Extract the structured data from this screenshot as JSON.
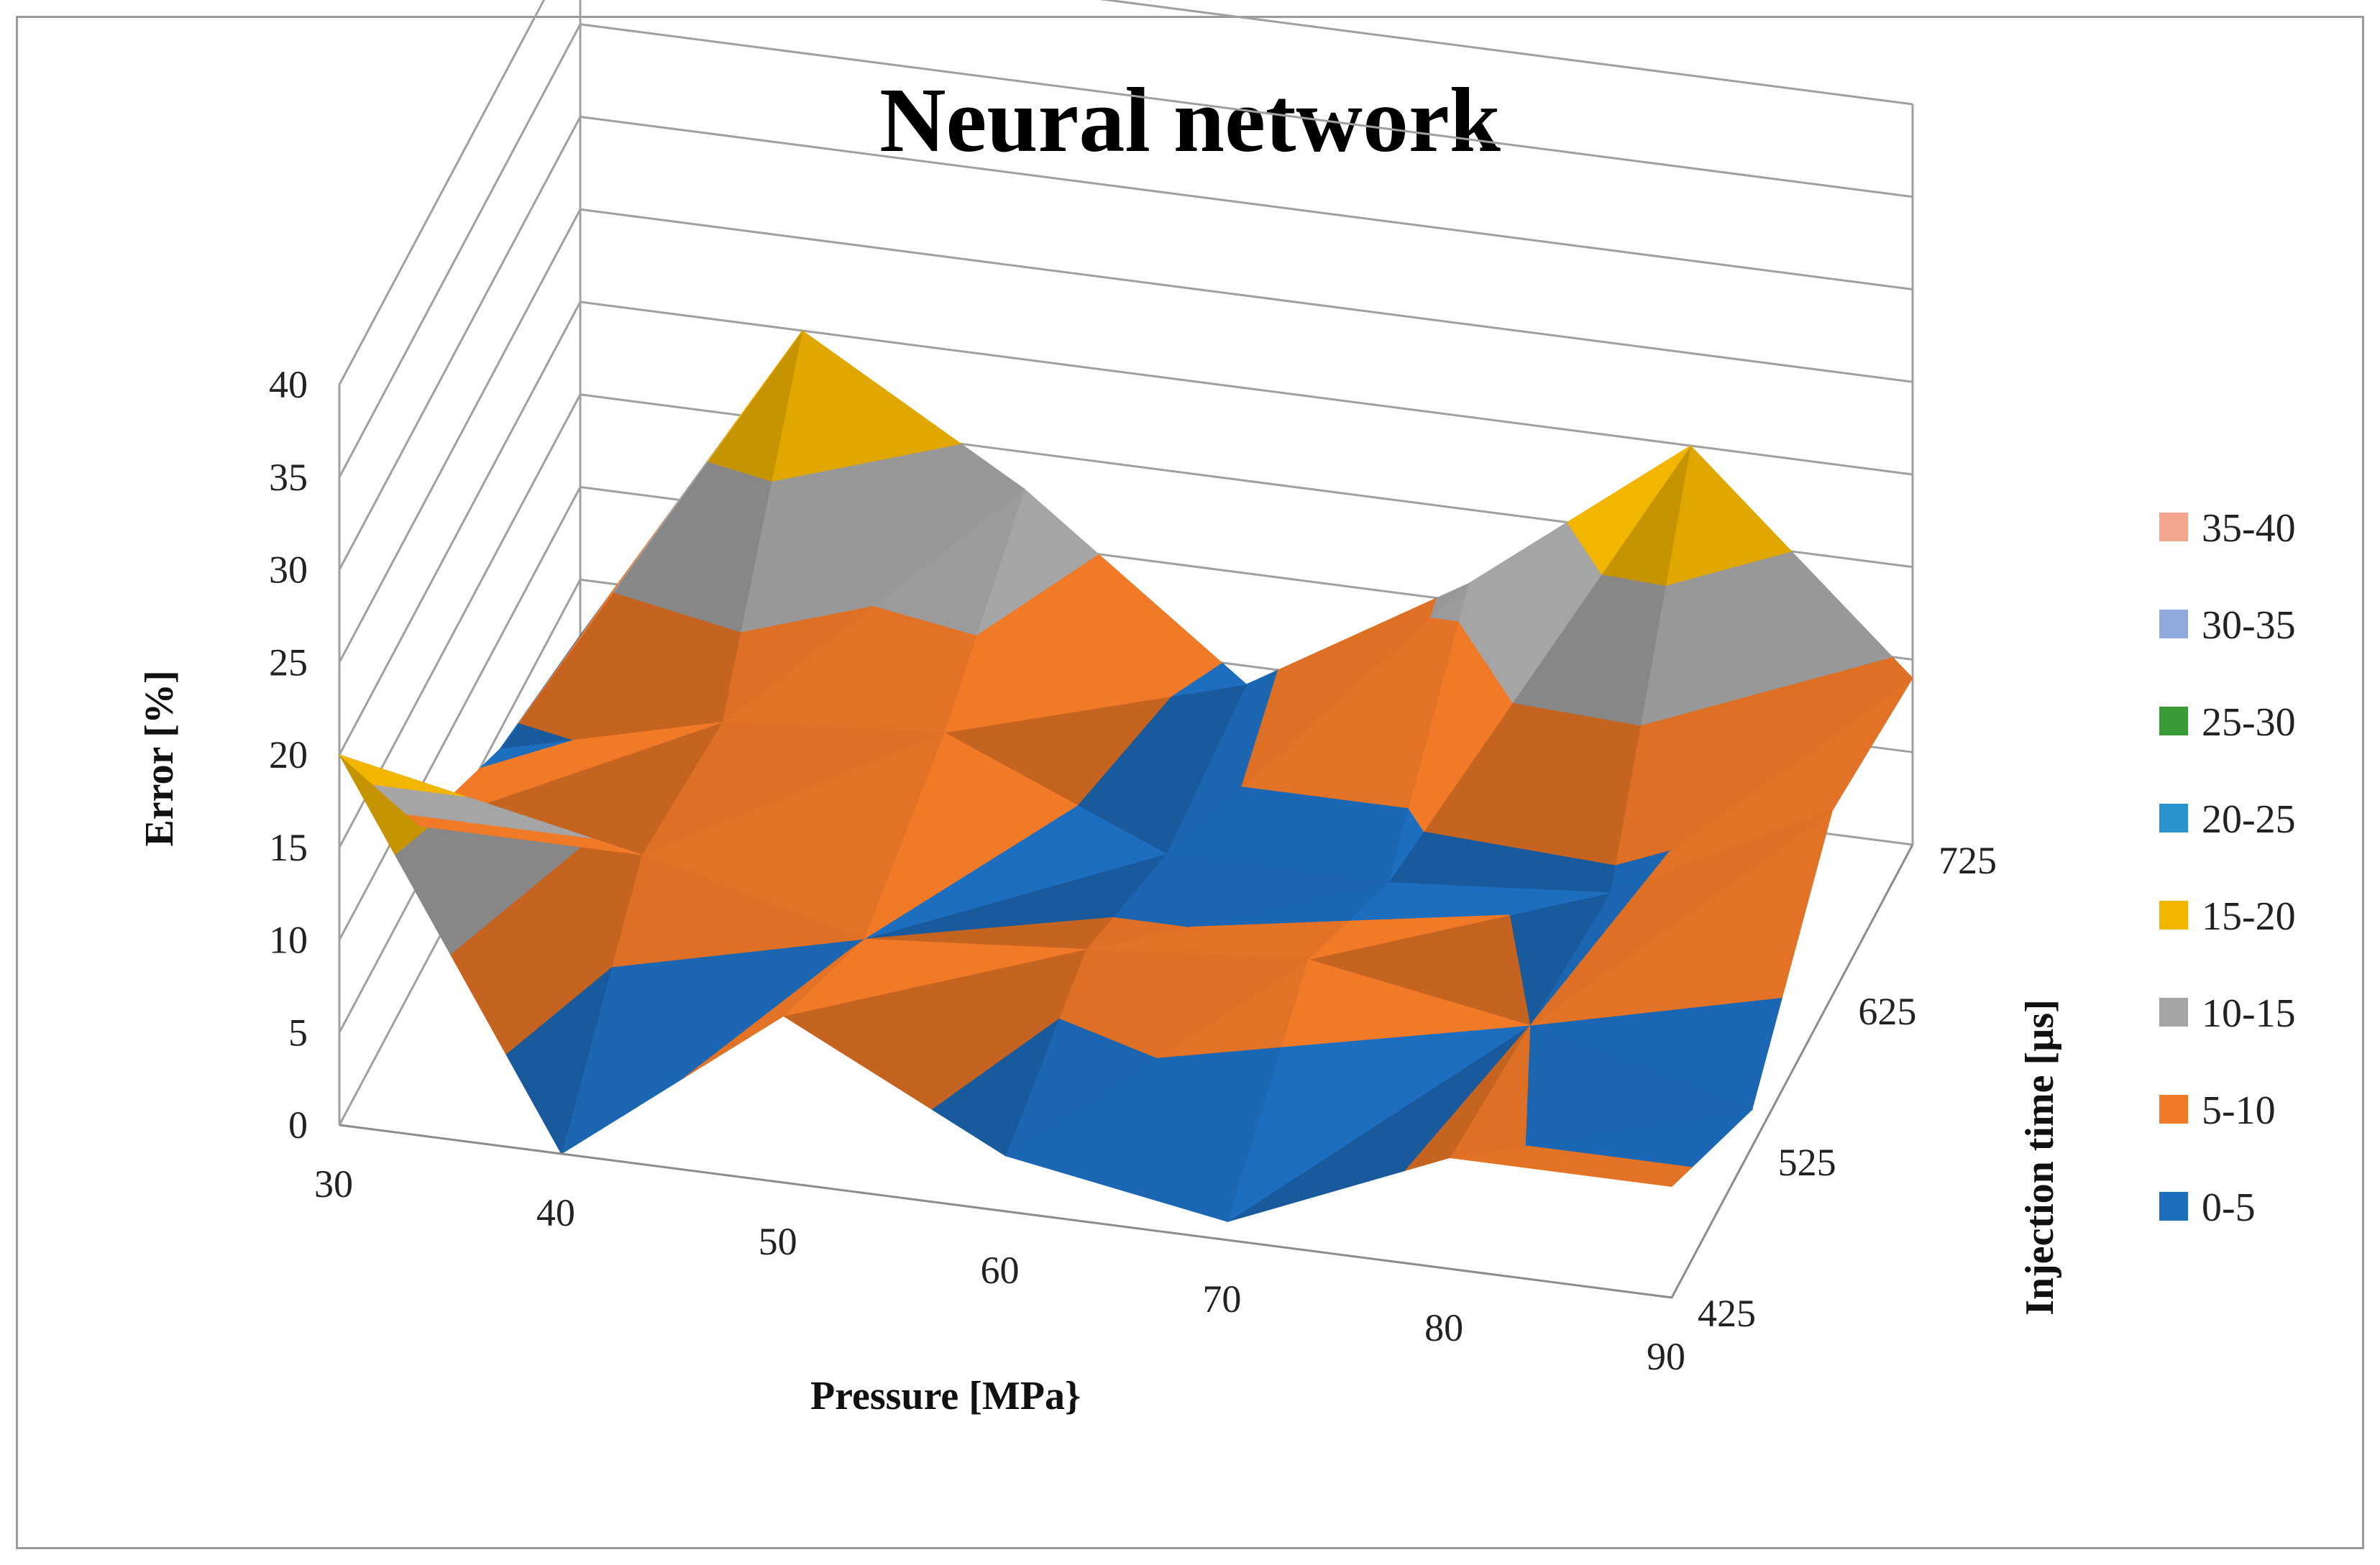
{
  "chart_data": {
    "type": "surface",
    "title": "Neural network",
    "zlabel": "Error [%]",
    "xlabel": "Pressure [MPa}",
    "ylabel": "Injection time [µs]",
    "zlim": [
      0,
      40
    ],
    "z_ticks": [
      "0",
      "5",
      "10",
      "15",
      "20",
      "25",
      "30",
      "35",
      "40"
    ],
    "pressure": [
      30,
      40,
      50,
      60,
      70,
      80,
      90
    ],
    "pressure_ticks": [
      "30",
      "40",
      "50",
      "60",
      "70",
      "80",
      "90"
    ],
    "injection_time": [
      425,
      525,
      625,
      725
    ],
    "injection_time_ticks": [
      "425",
      "525",
      "625",
      "725"
    ],
    "error_values_by_injection_time": [
      {
        "injection_time": 425,
        "values": [
          20,
          0,
          9,
          3,
          1,
          6,
          6
        ]
      },
      {
        "injection_time": 525,
        "values": [
          8,
          8,
          5,
          6,
          7,
          5,
          2
        ]
      },
      {
        "injection_time": 625,
        "values": [
          4,
          7,
          8,
          3,
          3,
          4,
          10
        ]
      },
      {
        "injection_time": 725,
        "values": [
          2,
          20,
          13,
          4,
          11,
          20,
          9
        ]
      }
    ],
    "legend_position": "right",
    "legend": [
      {
        "label": "35-40",
        "color": "#f4a58e"
      },
      {
        "label": "30-35",
        "color": "#8ea9db"
      },
      {
        "label": "25-30",
        "color": "#3a9b37"
      },
      {
        "label": "20-25",
        "color": "#2994cb"
      },
      {
        "label": "15-20",
        "color": "#f2b500"
      },
      {
        "label": "10-15",
        "color": "#a5a5a5"
      },
      {
        "label": "5-10",
        "color": "#f07a28"
      },
      {
        "label": "0-5",
        "color": "#1e6ec0"
      }
    ]
  }
}
